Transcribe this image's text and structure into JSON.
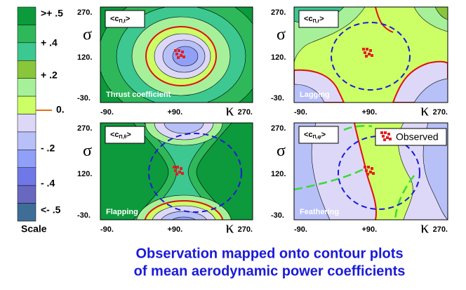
{
  "scale": {
    "labels": [
      ">+ .5",
      "+ .4",
      "+ .2",
      "0.",
      "- .2",
      "- .4",
      "<- .5"
    ],
    "title": "Scale"
  },
  "axes": {
    "yticks": [
      "270.",
      "120.",
      "-30."
    ],
    "xticks": [
      "-90.",
      "+90.",
      "270."
    ],
    "ylabel": "σ",
    "xlabel": "κ"
  },
  "panels": [
    {
      "symbol": {
        "open": "<c",
        "sub": "Π,t",
        "close": ">"
      },
      "caption": "Thrust coefficient"
    },
    {
      "symbol": {
        "open": "<c",
        "sub": "Π,r",
        "close": ">"
      },
      "caption": "Lagging"
    },
    {
      "symbol": {
        "open": "<c",
        "sub": "Π,θ",
        "close": ">"
      },
      "caption": "Flapping"
    },
    {
      "symbol": {
        "open": "<c",
        "sub": "Π,φ",
        "close": ">"
      },
      "caption": "Feathering"
    }
  ],
  "legend": "Observed",
  "title": [
    "Observation mapped onto contour plots",
    "of mean aerodynamic power coefficients"
  ]
}
